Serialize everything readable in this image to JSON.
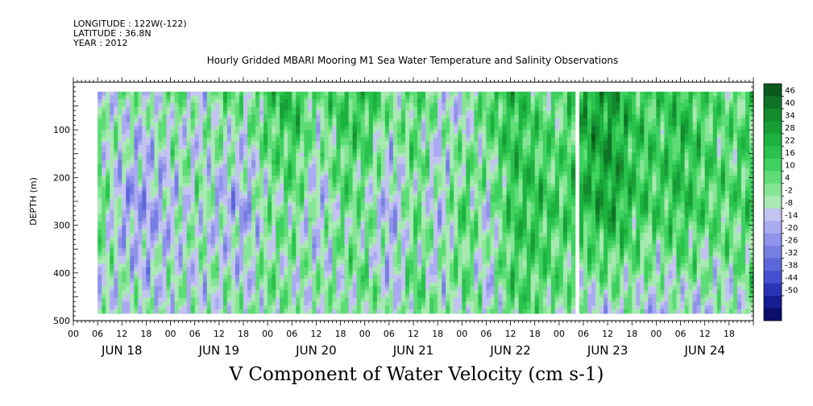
{
  "meta": {
    "longitude": "LONGITUDE : 122W(-122)",
    "latitude": "LATITUDE : 36.8N",
    "year": "YEAR : 2012"
  },
  "chart_data": {
    "type": "heatmap",
    "title": "Hourly Gridded MBARI Mooring M1 Sea Water Temperature and Salinity Observations",
    "xlabel": "V Component of Water Velocity (cm s-1)",
    "ylabel": "DEPTH (m)",
    "ylim": [
      500,
      0
    ],
    "y_ticks": [
      100,
      200,
      300,
      400,
      500
    ],
    "x_hour_ticks": [
      "00",
      "06",
      "12",
      "18",
      "00",
      "06",
      "12",
      "18",
      "00",
      "06",
      "12",
      "18",
      "00",
      "06",
      "12",
      "18",
      "00",
      "06",
      "12",
      "18",
      "00",
      "06",
      "12",
      "18",
      "00",
      "06",
      "12",
      "18"
    ],
    "day_labels": [
      "JUN 18",
      "JUN 19",
      "JUN 20",
      "JUN 21",
      "JUN 22",
      "JUN 23",
      "JUN 24"
    ],
    "x_range_hours": [
      0,
      168
    ],
    "data_start_hour": 6,
    "data_end_hour": 168,
    "data_depth_range": [
      20,
      485
    ],
    "gap_hours": [
      124,
      125
    ],
    "colorbar": {
      "levels": [
        46,
        40,
        34,
        28,
        22,
        16,
        10,
        4,
        -2,
        -8,
        -14,
        -20,
        -26,
        -32,
        -38,
        -44,
        -50
      ],
      "colors": [
        "#0a5a1c",
        "#0f7326",
        "#148a2e",
        "#189e36",
        "#1cb23e",
        "#2ac24c",
        "#3fd15e",
        "#5edc76",
        "#86e595",
        "#a9e9b3",
        "#c3c3f2",
        "#a9aaf0",
        "#9093ea",
        "#767ee2",
        "#5d67da",
        "#4550cf",
        "#2a33b3",
        "#141d92",
        "#0a0e6a"
      ],
      "min": -50,
      "max": 46
    },
    "field": {
      "bands": [
        {
          "hour": 6,
          "top": -8,
          "mid": 10,
          "bottom": -8
        },
        {
          "hour": 12,
          "top": 4,
          "mid": -14,
          "bottom": 2
        },
        {
          "hour": 18,
          "top": -2,
          "mid": -14,
          "bottom": -4
        },
        {
          "hour": 24,
          "top": 8,
          "mid": -8,
          "bottom": 0
        },
        {
          "hour": 30,
          "top": -8,
          "mid": 2,
          "bottom": -8
        },
        {
          "hour": 36,
          "top": 10,
          "mid": -10,
          "bottom": 4
        },
        {
          "hour": 42,
          "top": 4,
          "mid": -12,
          "bottom": -2
        },
        {
          "hour": 48,
          "top": 16,
          "mid": 2,
          "bottom": 6
        },
        {
          "hour": 54,
          "top": 22,
          "mid": 6,
          "bottom": -4
        },
        {
          "hour": 60,
          "top": 6,
          "mid": -10,
          "bottom": 4
        },
        {
          "hour": 66,
          "top": 16,
          "mid": 8,
          "bottom": -4
        },
        {
          "hour": 72,
          "top": 20,
          "mid": 2,
          "bottom": 8
        },
        {
          "hour": 78,
          "top": 4,
          "mid": -12,
          "bottom": -6
        },
        {
          "hour": 84,
          "top": 10,
          "mid": 6,
          "bottom": 10
        },
        {
          "hour": 90,
          "top": 0,
          "mid": -8,
          "bottom": -2
        },
        {
          "hour": 96,
          "top": -10,
          "mid": 12,
          "bottom": 4
        },
        {
          "hour": 102,
          "top": 14,
          "mid": -4,
          "bottom": -6
        },
        {
          "hour": 108,
          "top": 20,
          "mid": 16,
          "bottom": 10
        },
        {
          "hour": 114,
          "top": 8,
          "mid": 18,
          "bottom": 6
        },
        {
          "hour": 120,
          "top": 4,
          "mid": 12,
          "bottom": 4
        },
        {
          "hour": 126,
          "top": 26,
          "mid": 20,
          "bottom": -8
        },
        {
          "hour": 132,
          "top": 28,
          "mid": 28,
          "bottom": -10
        },
        {
          "hour": 138,
          "top": 16,
          "mid": 16,
          "bottom": -4
        },
        {
          "hour": 144,
          "top": 12,
          "mid": 14,
          "bottom": -12
        },
        {
          "hour": 150,
          "top": 20,
          "mid": 18,
          "bottom": -6
        },
        {
          "hour": 156,
          "top": 10,
          "mid": 12,
          "bottom": -8
        },
        {
          "hour": 162,
          "top": 6,
          "mid": 10,
          "bottom": -4
        },
        {
          "hour": 168,
          "top": 14,
          "mid": 14,
          "bottom": 0
        }
      ]
    }
  }
}
